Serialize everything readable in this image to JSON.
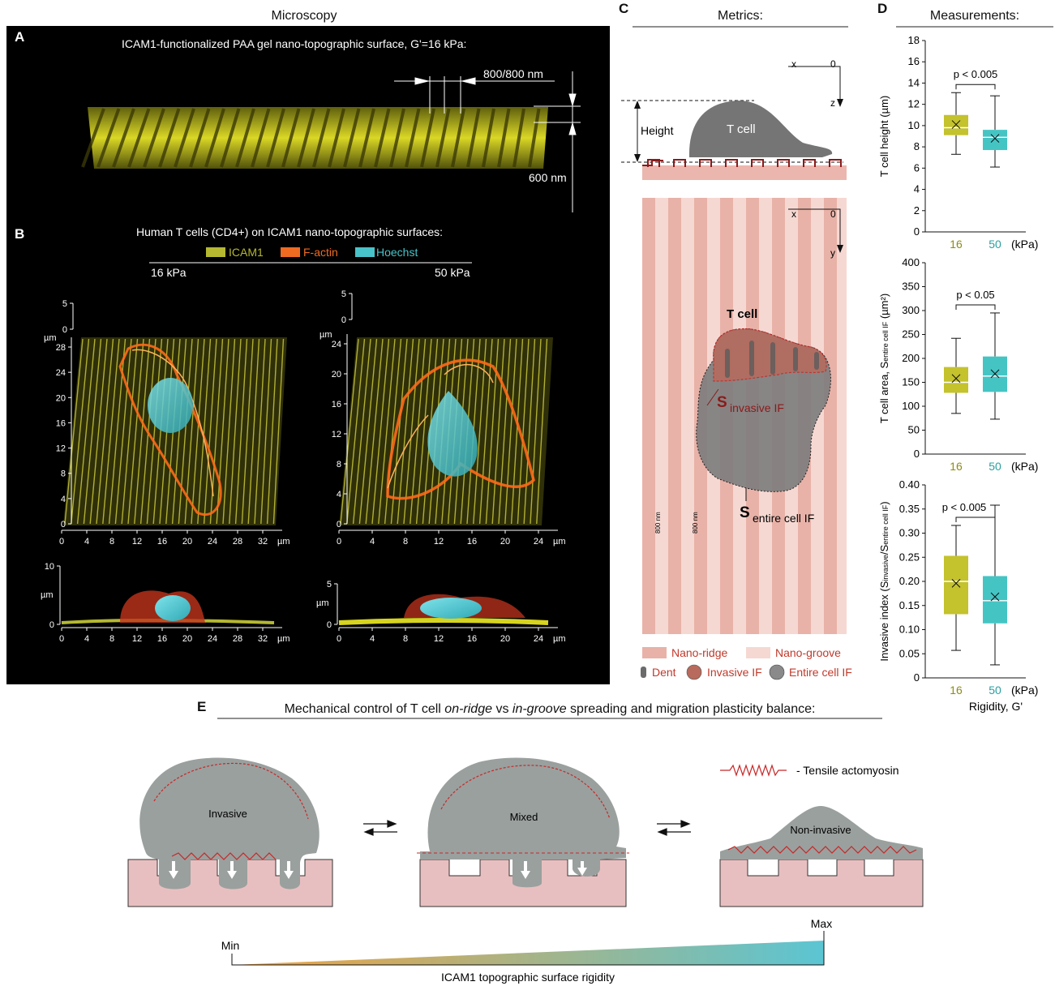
{
  "panel_a": {
    "section_title": "Microscopy",
    "letter": "A",
    "title": "ICAM1-functionalized PAA gel nano-topographic surface, G'=16 kPa:",
    "pitch_label": "800/800 nm",
    "height_label": "600 nm"
  },
  "panel_b": {
    "letter": "B",
    "title": "Human T cells (CD4+) on ICAM1 nano-topographic surfaces:",
    "legend": [
      {
        "label": "ICAM1",
        "color": "#b5b830"
      },
      {
        "label": "F-actin",
        "color": "#f06a22"
      },
      {
        "label": "Hoechst",
        "color": "#48c3c9"
      }
    ],
    "left_condition": "16 kPa",
    "right_condition": "50 kPa",
    "unit": "µm",
    "left_x_ticks": [
      "0",
      "4",
      "8",
      "12",
      "16",
      "20",
      "24",
      "28",
      "32"
    ],
    "right_x_ticks": [
      "0",
      "4",
      "8",
      "12",
      "16",
      "20",
      "24"
    ],
    "left_y_ticks": [
      "0",
      "4",
      "8",
      "12",
      "16",
      "20",
      "24",
      "28"
    ],
    "right_y_ticks": [
      "0",
      "4",
      "8",
      "12",
      "16",
      "20",
      "24"
    ],
    "left_z_top": "5",
    "right_z_top": "5",
    "left_side_z": "10",
    "right_side_z": "5",
    "zero": "0"
  },
  "panel_c": {
    "letter": "C",
    "title": "Metrics:",
    "cell_label": "T cell",
    "height_label": "Height",
    "axis_x": "x",
    "axis_zero": "0",
    "axis_z": "z",
    "axis_y": "y",
    "cell_label_top": "T cell",
    "s_invasive_main": "S",
    "s_invasive_sub": "invasive IF",
    "s_entire_main": "S",
    "s_entire_sub": "entire cell IF",
    "stripe_width_label": "800 nm",
    "legend": [
      {
        "label": "Nano-ridge",
        "color": "#e8b2a8"
      },
      {
        "label": "Nano-groove",
        "color": "#f6d8d2"
      },
      {
        "label": "Dent",
        "color": "#6b6b6b"
      },
      {
        "label": "Invasive IF",
        "color": "#b86a5c"
      },
      {
        "label": "Entire cell IF",
        "color": "#8a8a8a"
      }
    ]
  },
  "panel_d": {
    "letter": "D",
    "title": "Measurements:",
    "xlabel": "Rigidity, G'",
    "chart_data": [
      {
        "type": "box",
        "ylabel": "T cell height (µm)",
        "ylim": [
          0,
          18
        ],
        "yticks": [
          "0",
          "2",
          "4",
          "6",
          "8",
          "10",
          "12",
          "14",
          "16",
          "18"
        ],
        "categories": [
          "16",
          "50"
        ],
        "unit_label": "(kPa)",
        "annotation": "p < 0.005",
        "boxes": [
          {
            "category": "16",
            "min": 7.3,
            "q1": 9.1,
            "median": 9.8,
            "mean": 10.1,
            "q3": 11.0,
            "max": 13.1,
            "color": "#c4c22d"
          },
          {
            "category": "50",
            "min": 6.1,
            "q1": 7.7,
            "median": 8.9,
            "mean": 8.8,
            "q3": 9.6,
            "max": 12.8,
            "color": "#45c4c4"
          }
        ]
      },
      {
        "type": "box",
        "ylabel_main": "T cell area, S",
        "ylabel_sub": "entire cell IF",
        "ylabel_tail": " (µm²)",
        "ylim": [
          0,
          400
        ],
        "yticks": [
          "0",
          "50",
          "100",
          "150",
          "200",
          "250",
          "300",
          "350",
          "400"
        ],
        "categories": [
          "16",
          "50"
        ],
        "unit_label": "(kPa)",
        "annotation": "p < 0.05",
        "boxes": [
          {
            "category": "16",
            "min": 85,
            "q1": 128,
            "median": 150,
            "mean": 158,
            "q3": 182,
            "max": 242,
            "color": "#c4c22d"
          },
          {
            "category": "50",
            "min": 73,
            "q1": 130,
            "median": 163,
            "mean": 168,
            "q3": 204,
            "max": 295,
            "color": "#45c4c4"
          }
        ]
      },
      {
        "type": "box",
        "ylabel_main": "Invasive index (S",
        "ylabel_sub1": "invasive",
        "ylabel_mid": "/S",
        "ylabel_sub2": "entire cell IF",
        "ylabel_tail": ")",
        "ylim": [
          0,
          0.4
        ],
        "yticks": [
          "0",
          "0.05",
          "0.10",
          "0.15",
          "0.20",
          "0.25",
          "0.30",
          "0.35",
          "0.40"
        ],
        "categories": [
          "16",
          "50"
        ],
        "unit_label": "(kPa)",
        "annotation": "p < 0.005",
        "boxes": [
          {
            "category": "16",
            "min": 0.057,
            "q1": 0.132,
            "median": 0.2,
            "mean": 0.196,
            "q3": 0.253,
            "max": 0.316,
            "color": "#c4c22d"
          },
          {
            "category": "50",
            "min": 0.027,
            "q1": 0.113,
            "median": 0.16,
            "mean": 0.168,
            "q3": 0.211,
            "max": 0.358,
            "color": "#45c4c4"
          }
        ]
      }
    ]
  },
  "panel_e": {
    "letter": "E",
    "title_parts": [
      "Mechanical control of T cell ",
      "on-ridge",
      " vs ",
      "in-groove",
      " spreading and migration plasticity balance:"
    ],
    "states": [
      "Invasive",
      "Mixed",
      "Non-invasive"
    ],
    "legend_label": "- Tensile actomyosin",
    "gradient_min": "Min",
    "gradient_max": "Max",
    "gradient_label": "ICAM1 topographic surface rigidity",
    "colors": {
      "cell": "#9aa09e",
      "substrate": "#e8bfc0",
      "actomyosin": "#c62828",
      "grad_start": "#f4a13a",
      "grad_end": "#5bc5d3"
    }
  }
}
